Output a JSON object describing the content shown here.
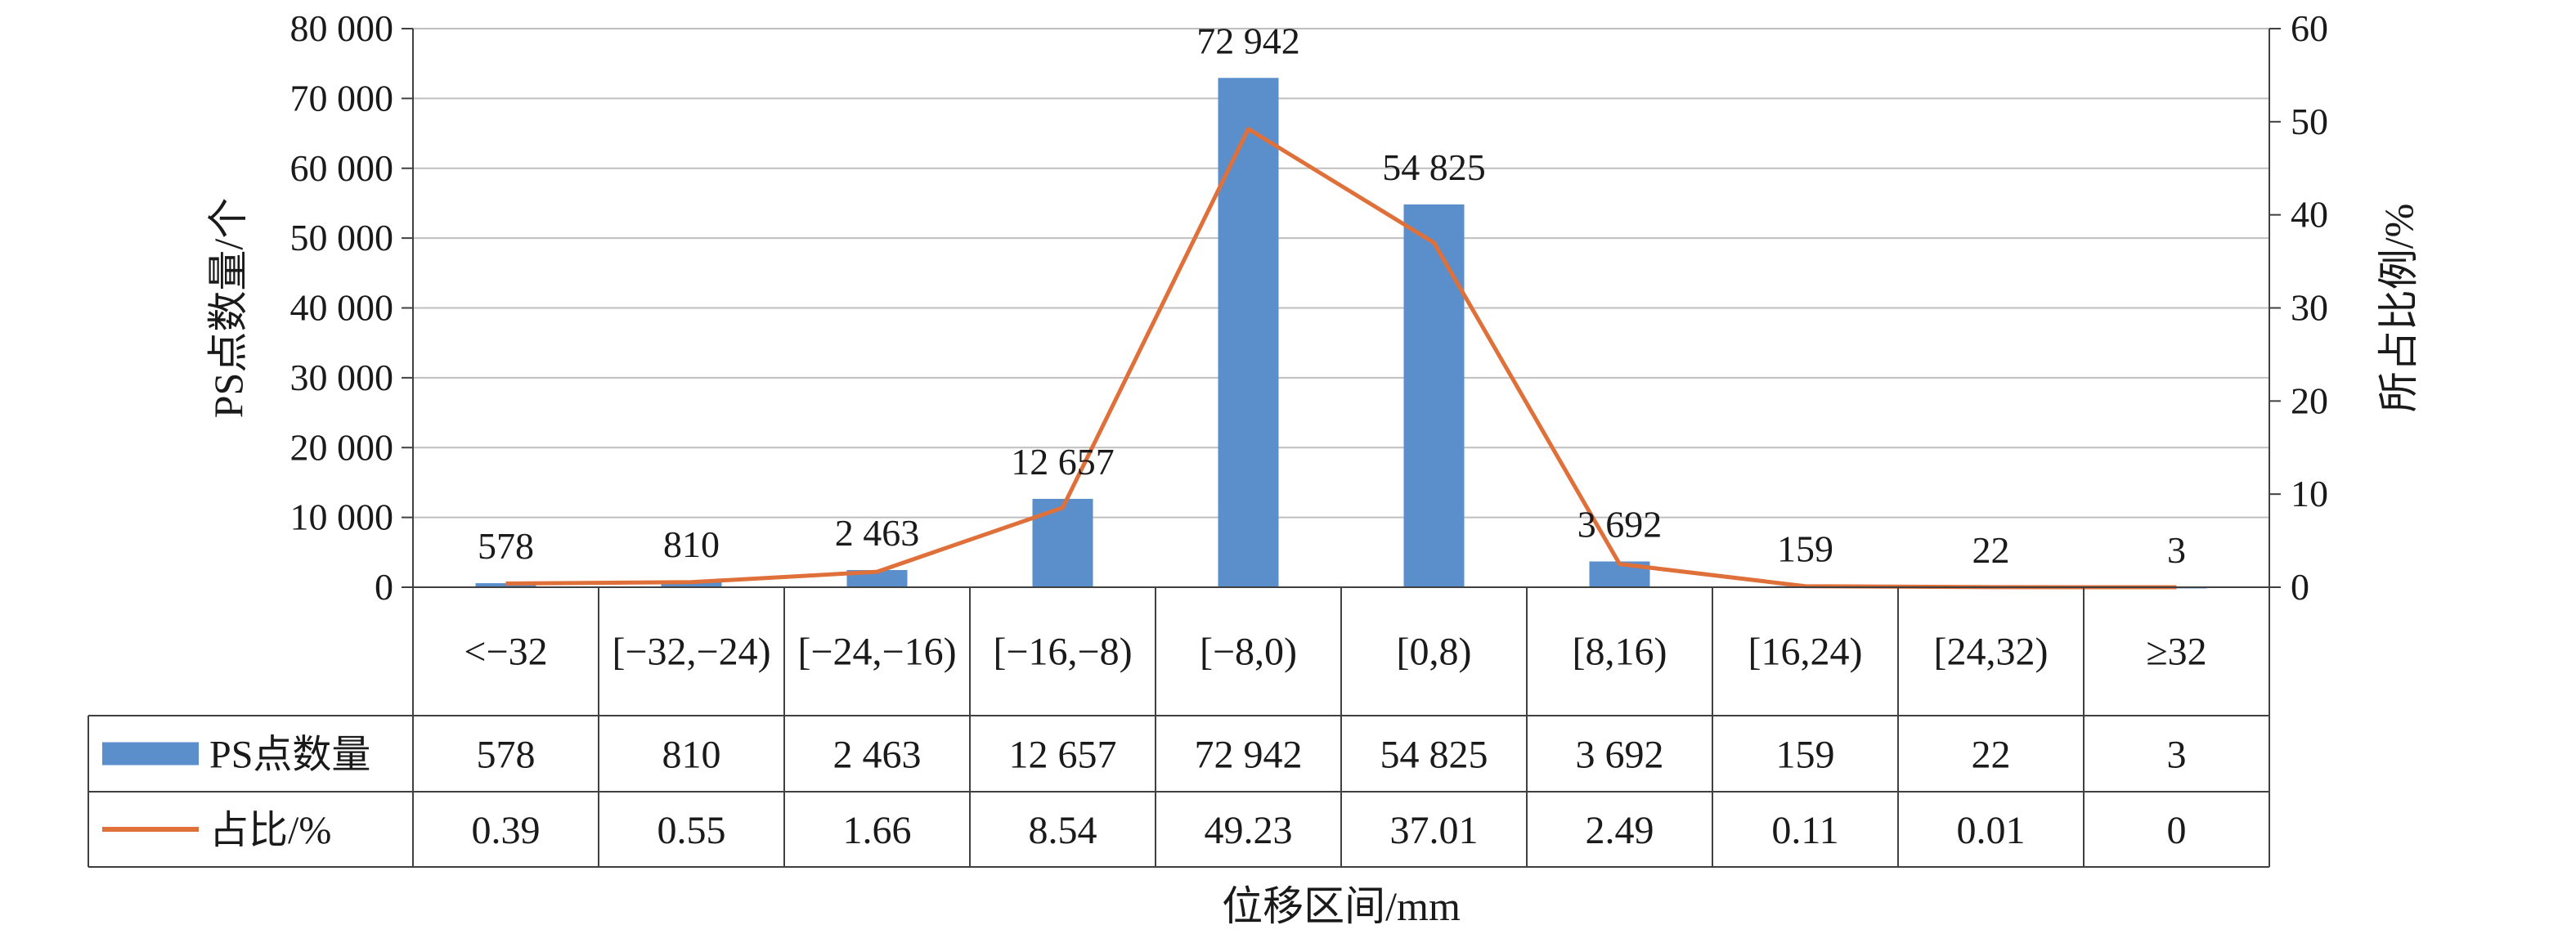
{
  "chart_data": {
    "type": "bar",
    "categories": [
      "<−32",
      "[−32,−24)",
      "[−24,−16)",
      "[−16,−8)",
      "[−8,0)",
      "[0,8)",
      "[8,16)",
      "[16,24)",
      "[24,32)",
      "≥32"
    ],
    "series": [
      {
        "name": "PS点数量",
        "kind": "bar",
        "axis": "left",
        "color": "#5B8FCC",
        "values": [
          578,
          810,
          2463,
          12657,
          72942,
          54825,
          3692,
          159,
          22,
          3
        ],
        "value_labels": [
          "578",
          "810",
          "2 463",
          "12 657",
          "72 942",
          "54 825",
          "3 692",
          "159",
          "22",
          "3"
        ]
      },
      {
        "name": "占比/%",
        "kind": "line",
        "axis": "right",
        "color": "#E0703A",
        "values": [
          0.39,
          0.55,
          1.66,
          8.54,
          49.23,
          37.01,
          2.49,
          0.11,
          0.01,
          0
        ],
        "value_labels": [
          "0.39",
          "0.55",
          "1.66",
          "8.54",
          "49.23",
          "37.01",
          "2.49",
          "0.11",
          "0.01",
          "0"
        ]
      }
    ],
    "xlabel": "位移区间/mm",
    "ylabel": "PS点数量/个",
    "y2label": "所占比例/%",
    "ylim": [
      0,
      80000
    ],
    "y2lim": [
      0,
      60
    ],
    "yticks": [
      0,
      10000,
      20000,
      30000,
      40000,
      50000,
      60000,
      70000,
      80000
    ],
    "ytick_labels": [
      "0",
      "10 000",
      "20 000",
      "30 000",
      "40 000",
      "50 000",
      "60 000",
      "70 000",
      "80 000"
    ],
    "y2ticks": [
      0,
      10,
      20,
      30,
      40,
      50,
      60
    ],
    "y2tick_labels": [
      "0",
      "10",
      "20",
      "30",
      "40",
      "50",
      "60"
    ],
    "grid": true,
    "legend": "data-table-left"
  }
}
